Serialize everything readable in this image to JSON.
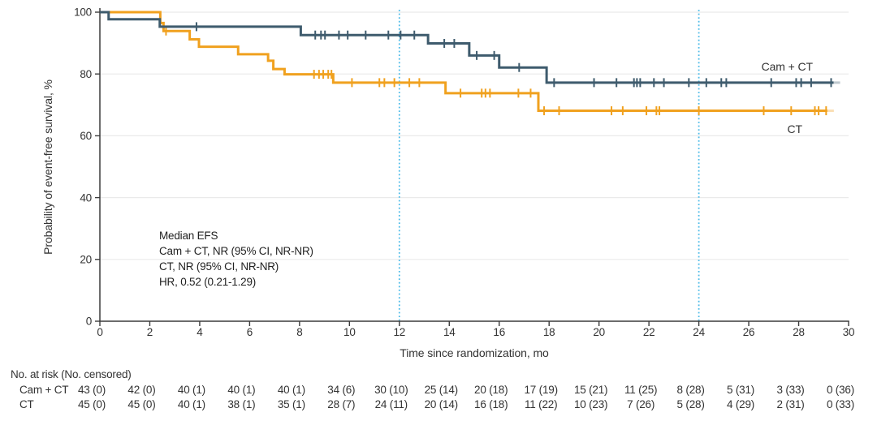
{
  "chart_data": {
    "type": "line",
    "subtype": "kaplan-meier-step-curve",
    "title": "",
    "x": {
      "label": "Time since randomization, mo",
      "min": 0,
      "max": 30,
      "ticks": [
        0,
        2,
        4,
        6,
        8,
        10,
        12,
        14,
        16,
        18,
        20,
        22,
        24,
        26,
        28,
        30
      ]
    },
    "y": {
      "label": "Probability of event-free survival, %",
      "min": 0,
      "max": 100,
      "ticks": [
        0,
        20,
        40,
        60,
        80,
        100
      ]
    },
    "grid": "horizontal",
    "reference_lines_x": [
      12,
      24
    ],
    "colors": {
      "camct": "#3E5B6D",
      "ct": "#F0A11F",
      "refline": "#4DBBE8",
      "grid": "#EAEAEA",
      "axis": "#3B3B3B",
      "text": "#333333"
    },
    "series": [
      {
        "name": "Cam + CT",
        "color": "#3E5B6D",
        "steps": [
          [
            0,
            100
          ],
          [
            0.35,
            97.7
          ],
          [
            2.4,
            95.3
          ],
          [
            8.05,
            92.6
          ],
          [
            13.15,
            89.9
          ],
          [
            14.8,
            86.0
          ],
          [
            16.0,
            82.1
          ],
          [
            17.9,
            77.2
          ],
          [
            29.4,
            77.2
          ]
        ],
        "censors": [
          [
            3.87,
            95.3
          ],
          [
            8.63,
            92.6
          ],
          [
            8.86,
            92.6
          ],
          [
            9.02,
            92.6
          ],
          [
            9.58,
            92.6
          ],
          [
            9.93,
            92.6
          ],
          [
            10.65,
            92.6
          ],
          [
            11.56,
            92.6
          ],
          [
            12.05,
            92.6
          ],
          [
            12.6,
            92.6
          ],
          [
            13.8,
            89.9
          ],
          [
            14.2,
            89.9
          ],
          [
            15.1,
            86.0
          ],
          [
            15.8,
            86.0
          ],
          [
            16.8,
            82.1
          ],
          [
            18.2,
            77.2
          ],
          [
            19.8,
            77.2
          ],
          [
            20.7,
            77.2
          ],
          [
            21.4,
            77.2
          ],
          [
            21.52,
            77.2
          ],
          [
            21.65,
            77.2
          ],
          [
            22.2,
            77.2
          ],
          [
            22.6,
            77.2
          ],
          [
            23.6,
            77.2
          ],
          [
            24.3,
            77.2
          ],
          [
            24.9,
            77.2
          ],
          [
            25.1,
            77.2
          ],
          [
            26.9,
            77.2
          ],
          [
            27.9,
            77.2
          ],
          [
            28.1,
            77.2
          ],
          [
            28.5,
            77.2
          ],
          [
            29.3,
            77.2
          ]
        ]
      },
      {
        "name": "CT",
        "color": "#F0A11F",
        "steps": [
          [
            0,
            100
          ],
          [
            2.42,
            96.5
          ],
          [
            2.55,
            93.9
          ],
          [
            3.6,
            91.2
          ],
          [
            3.97,
            88.8
          ],
          [
            5.54,
            86.4
          ],
          [
            6.74,
            84.3
          ],
          [
            6.95,
            81.6
          ],
          [
            7.4,
            79.9
          ],
          [
            9.35,
            77.2
          ],
          [
            13.85,
            73.8
          ],
          [
            17.57,
            68.1
          ],
          [
            29.15,
            68.1
          ]
        ],
        "censors": [
          [
            2.65,
            93.9
          ],
          [
            8.58,
            79.9
          ],
          [
            8.78,
            79.9
          ],
          [
            8.95,
            79.9
          ],
          [
            9.15,
            79.9
          ],
          [
            9.28,
            79.9
          ],
          [
            10.1,
            77.2
          ],
          [
            11.2,
            77.2
          ],
          [
            11.4,
            77.2
          ],
          [
            11.8,
            77.2
          ],
          [
            12.4,
            77.2
          ],
          [
            12.8,
            77.2
          ],
          [
            14.45,
            73.8
          ],
          [
            15.3,
            73.8
          ],
          [
            15.45,
            73.8
          ],
          [
            15.63,
            73.8
          ],
          [
            16.77,
            73.8
          ],
          [
            17.26,
            73.8
          ],
          [
            17.8,
            68.1
          ],
          [
            18.4,
            68.1
          ],
          [
            20.5,
            68.1
          ],
          [
            20.95,
            68.1
          ],
          [
            21.9,
            68.1
          ],
          [
            22.3,
            68.1
          ],
          [
            22.42,
            68.1
          ],
          [
            24.0,
            68.1
          ],
          [
            26.6,
            68.1
          ],
          [
            27.7,
            68.1
          ],
          [
            28.65,
            68.1
          ],
          [
            28.8,
            68.1
          ],
          [
            29.1,
            68.1
          ]
        ]
      }
    ],
    "annotation": {
      "lines": [
        "Median EFS",
        "Cam + CT, NR (95% CI, NR-NR)",
        "CT, NR (95% CI, NR-NR)",
        "HR, 0.52 (0.21-1.29)"
      ]
    },
    "risk_table": {
      "header": "No. at risk (No. censored)",
      "time_points": [
        0,
        2,
        4,
        6,
        8,
        10,
        12,
        14,
        16,
        18,
        20,
        22,
        24,
        26,
        28,
        30
      ],
      "rows": [
        {
          "label": "Cam + CT",
          "values": [
            "43 (0)",
            "42 (0)",
            "40 (1)",
            "40 (1)",
            "40 (1)",
            "34 (6)",
            "30 (10)",
            "25 (14)",
            "20 (18)",
            "17 (19)",
            "15 (21)",
            "11 (25)",
            "8 (28)",
            "5 (31)",
            "3 (33)",
            "0 (36)"
          ]
        },
        {
          "label": "CT",
          "values": [
            "45 (0)",
            "45 (0)",
            "40 (1)",
            "38 (1)",
            "35 (1)",
            "28 (7)",
            "24 (11)",
            "20 (14)",
            "16 (18)",
            "11 (22)",
            "10 (23)",
            "7 (26)",
            "5 (28)",
            "4 (29)",
            "2 (31)",
            "0 (33)"
          ]
        }
      ]
    }
  }
}
